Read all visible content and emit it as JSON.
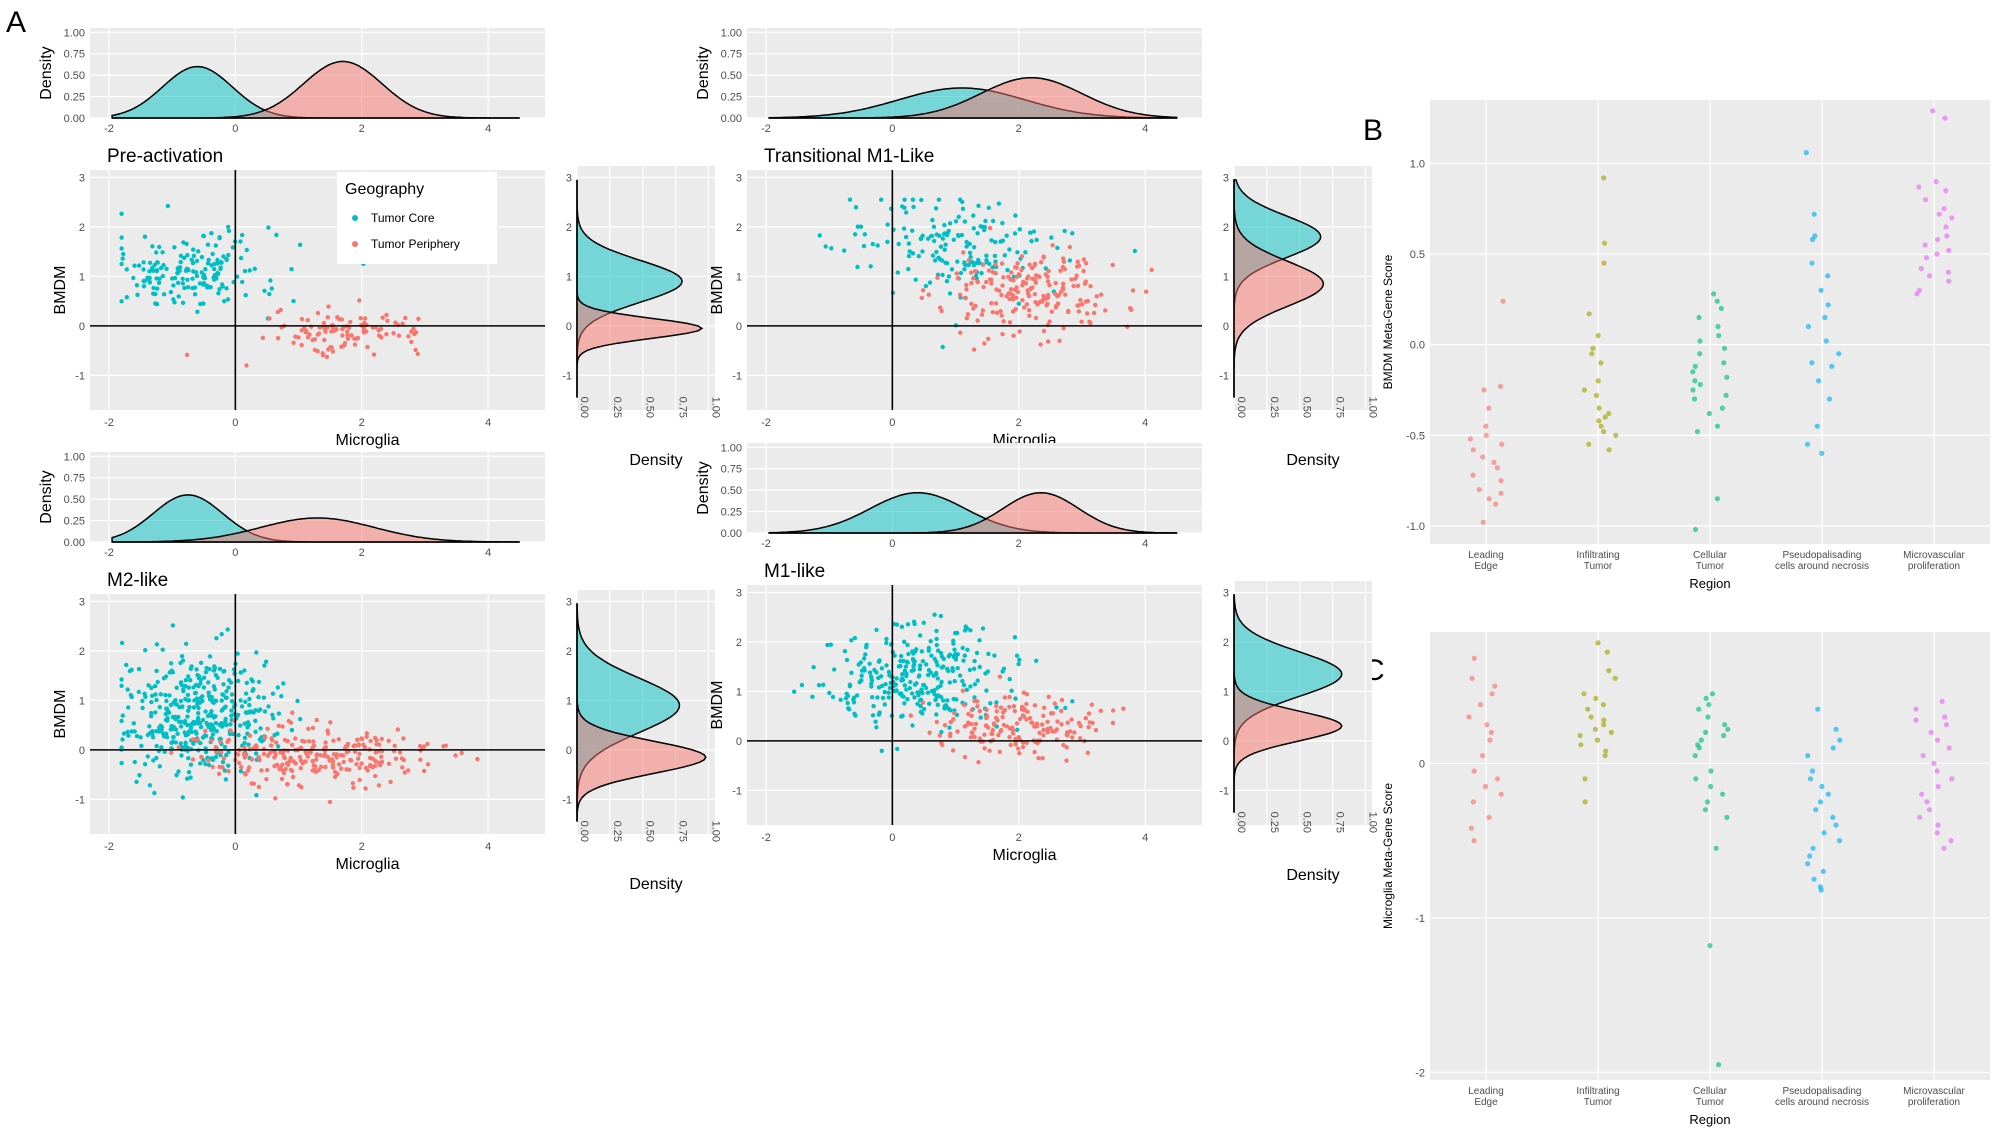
{
  "figure": {
    "panel_letters": [
      "A",
      "B",
      "C"
    ],
    "colors": {
      "core": "#00BFC4",
      "periphery": "#F8766D",
      "panel_bg": "#EBEBEB",
      "grid": "#FFFFFF",
      "region_colors": [
        "#F8766D",
        "#A3A500",
        "#00BF7D",
        "#00B0F6",
        "#E76BF3"
      ]
    }
  },
  "chart_data": [
    {
      "type": "scatter",
      "title": "Pre-activation",
      "xlabel": "Microglia",
      "ylabel": "BMDM",
      "xlim": [
        -2.3,
        4.9
      ],
      "ylim": [
        -1.7,
        3.15
      ],
      "xticks": [
        "-2",
        "0",
        "2",
        "4"
      ],
      "yticks": [
        "-1",
        "0",
        "1",
        "2",
        "3"
      ],
      "density_label": "Density",
      "density_ticks": [
        "0.00",
        "0.25",
        "0.50",
        "0.75",
        "1.00"
      ],
      "legend": {
        "title": "Geography",
        "entries": [
          "Tumor Core",
          "Tumor Periphery"
        ]
      },
      "series": [
        {
          "name": "Tumor Core",
          "x_center": -0.7,
          "x_spread": 0.7,
          "y_center": 1.1,
          "y_spread": 0.4,
          "n": 180,
          "top_density": {
            "mode": -0.6,
            "sd": 0.55,
            "peak": 0.6
          },
          "right_density": {
            "mode": 0.9,
            "sd": 0.42,
            "peak": 0.8
          }
        },
        {
          "name": "Tumor Periphery",
          "x_center": 1.8,
          "x_spread": 0.6,
          "y_center": -0.1,
          "y_spread": 0.2,
          "n": 110,
          "top_density": {
            "mode": 1.7,
            "sd": 0.62,
            "peak": 0.66
          },
          "right_density": {
            "mode": -0.05,
            "sd": 0.2,
            "peak": 0.95
          }
        }
      ]
    },
    {
      "type": "scatter",
      "title": "Transitional M1-Like",
      "xlabel": "Microglia",
      "ylabel": "BMDM",
      "xlim": [
        -2.3,
        4.9
      ],
      "ylim": [
        -1.7,
        3.15
      ],
      "xticks": [
        "-2",
        "0",
        "2",
        "4"
      ],
      "yticks": [
        "-1",
        "0",
        "1",
        "2",
        "3"
      ],
      "density_label": "Density",
      "density_ticks": [
        "0.00",
        "0.25",
        "0.50",
        "0.75",
        "1.00"
      ],
      "series": [
        {
          "name": "Tumor Core",
          "x_center": 1.0,
          "x_spread": 0.9,
          "y_center": 1.6,
          "y_spread": 0.5,
          "n": 170,
          "top_density": {
            "mode": 1.1,
            "sd": 1.0,
            "peak": 0.35
          },
          "right_density": {
            "mode": 1.8,
            "sd": 0.42,
            "peak": 0.66
          }
        },
        {
          "name": "Tumor Periphery",
          "x_center": 2.2,
          "x_spread": 0.7,
          "y_center": 0.7,
          "y_spread": 0.45,
          "n": 200,
          "top_density": {
            "mode": 2.2,
            "sd": 0.8,
            "peak": 0.47
          },
          "right_density": {
            "mode": 0.85,
            "sd": 0.45,
            "peak": 0.68
          }
        }
      ]
    },
    {
      "type": "scatter",
      "title": "M2-like",
      "xlabel": "Microglia",
      "ylabel": "BMDM",
      "xlim": [
        -2.3,
        4.9
      ],
      "ylim": [
        -1.7,
        3.15
      ],
      "xticks": [
        "-2",
        "0",
        "2",
        "4"
      ],
      "yticks": [
        "-1",
        "0",
        "1",
        "2",
        "3"
      ],
      "density_label": "Density",
      "density_ticks": [
        "0.00",
        "0.25",
        "0.50",
        "0.75",
        "1.00"
      ],
      "series": [
        {
          "name": "Tumor Core",
          "x_center": -0.6,
          "x_spread": 0.6,
          "y_center": 0.7,
          "y_spread": 0.6,
          "n": 420,
          "top_density": {
            "mode": -0.75,
            "sd": 0.55,
            "peak": 0.55
          },
          "right_density": {
            "mode": 0.9,
            "sd": 0.55,
            "peak": 0.78
          }
        },
        {
          "name": "Tumor Periphery",
          "x_center": 1.2,
          "x_spread": 0.9,
          "y_center": -0.1,
          "y_spread": 0.3,
          "n": 260,
          "top_density": {
            "mode": 1.3,
            "sd": 0.9,
            "peak": 0.28
          },
          "right_density": {
            "mode": -0.15,
            "sd": 0.32,
            "peak": 0.98
          }
        }
      ]
    },
    {
      "type": "scatter",
      "title": "M1-like",
      "xlabel": "Microglia",
      "ylabel": "BMDM",
      "xlim": [
        -2.3,
        4.9
      ],
      "ylim": [
        -1.7,
        3.15
      ],
      "xticks": [
        "-2",
        "0",
        "2",
        "4"
      ],
      "yticks": [
        "-1",
        "0",
        "1",
        "2",
        "3"
      ],
      "density_label": "Density",
      "density_ticks": [
        "0.00",
        "0.25",
        "0.50",
        "0.75",
        "1.00"
      ],
      "series": [
        {
          "name": "Tumor Core",
          "x_center": 0.5,
          "x_spread": 0.8,
          "y_center": 1.3,
          "y_spread": 0.5,
          "n": 300,
          "top_density": {
            "mode": 0.4,
            "sd": 0.75,
            "peak": 0.47
          },
          "right_density": {
            "mode": 1.35,
            "sd": 0.45,
            "peak": 0.82
          }
        },
        {
          "name": "Tumor Periphery",
          "x_center": 2.0,
          "x_spread": 0.65,
          "y_center": 0.3,
          "y_spread": 0.3,
          "n": 170,
          "top_density": {
            "mode": 2.35,
            "sd": 0.6,
            "peak": 0.47
          },
          "right_density": {
            "mode": 0.3,
            "sd": 0.3,
            "peak": 0.82
          }
        }
      ]
    },
    {
      "type": "scatter",
      "title": "",
      "xlabel": "Region",
      "ylabel": "BMDM Meta-Gene Score",
      "ylim": [
        -1.1,
        1.35
      ],
      "yticks": [
        -1.0,
        -0.5,
        0.0,
        0.5,
        1.0
      ],
      "ytick_labels": [
        "-1.0",
        "-0.5",
        "0.0",
        "0.5",
        "1.0"
      ],
      "categories": [
        "Leading Edge",
        "Infiltrating Tumor",
        "Cellular Tumor",
        "Pseudopalisading cells around necrosis",
        "Microvascular proliferation"
      ],
      "category_labels": [
        [
          "Leading",
          "Edge"
        ],
        [
          "Infiltrating",
          "Tumor"
        ],
        [
          "Cellular",
          "Tumor"
        ],
        [
          "Pseudopalisading",
          "cells around necrosis"
        ],
        [
          "Microvascular",
          "proliferation"
        ]
      ],
      "values": [
        [
          0.24,
          -0.23,
          -0.25,
          -0.35,
          -0.45,
          -0.5,
          -0.52,
          -0.55,
          -0.58,
          -0.62,
          -0.65,
          -0.68,
          -0.72,
          -0.75,
          -0.8,
          -0.82,
          -0.85,
          -0.88,
          -0.98
        ],
        [
          0.92,
          0.56,
          0.45,
          0.17,
          0.05,
          -0.02,
          -0.05,
          -0.1,
          -0.2,
          -0.25,
          -0.28,
          -0.35,
          -0.38,
          -0.4,
          -0.42,
          -0.45,
          -0.48,
          -0.5,
          -0.55,
          -0.58
        ],
        [
          0.28,
          0.24,
          0.2,
          0.15,
          0.1,
          0.05,
          0.02,
          -0.02,
          -0.05,
          -0.1,
          -0.12,
          -0.15,
          -0.18,
          -0.2,
          -0.22,
          -0.25,
          -0.28,
          -0.3,
          -0.35,
          -0.38,
          -0.45,
          -0.48,
          -0.85,
          -1.02
        ],
        [
          1.06,
          0.72,
          0.6,
          0.58,
          0.45,
          0.38,
          0.3,
          0.22,
          0.15,
          0.1,
          0.02,
          -0.05,
          -0.1,
          -0.12,
          -0.2,
          -0.3,
          -0.45,
          -0.55,
          -0.6
        ],
        [
          1.29,
          1.25,
          0.9,
          0.87,
          0.85,
          0.8,
          0.75,
          0.72,
          0.7,
          0.65,
          0.6,
          0.58,
          0.55,
          0.52,
          0.5,
          0.48,
          0.42,
          0.4,
          0.38,
          0.35,
          0.3,
          0.28
        ]
      ]
    },
    {
      "type": "scatter",
      "title": "",
      "xlabel": "Region",
      "ylabel": "Microglia Meta-Gene Score",
      "ylim": [
        -2.05,
        0.85
      ],
      "yticks": [
        -2,
        -1,
        0
      ],
      "ytick_labels": [
        "-2",
        "-1",
        "0"
      ],
      "categories": [
        "Leading Edge",
        "Infiltrating Tumor",
        "Cellular Tumor",
        "Pseudopalisading cells around necrosis",
        "Microvascular proliferation"
      ],
      "category_labels": [
        [
          "Leading",
          "Edge"
        ],
        [
          "Infiltrating",
          "Tumor"
        ],
        [
          "Cellular",
          "Tumor"
        ],
        [
          "Pseudopalisading",
          "cells around necrosis"
        ],
        [
          "Microvascular",
          "proliferation"
        ]
      ],
      "values": [
        [
          0.68,
          0.55,
          0.5,
          0.45,
          0.38,
          0.3,
          0.25,
          0.2,
          0.15,
          0.05,
          -0.05,
          -0.1,
          -0.15,
          -0.2,
          -0.25,
          -0.35,
          -0.42,
          -0.5
        ],
        [
          0.78,
          0.72,
          0.6,
          0.55,
          0.45,
          0.42,
          0.38,
          0.35,
          0.3,
          0.28,
          0.25,
          0.22,
          0.2,
          0.18,
          0.15,
          0.12,
          0.08,
          0.05,
          -0.1,
          -0.25
        ],
        [
          0.45,
          0.42,
          0.38,
          0.35,
          0.3,
          0.25,
          0.22,
          0.2,
          0.18,
          0.15,
          0.12,
          0.1,
          0.05,
          -0.05,
          -0.1,
          -0.15,
          -0.2,
          -0.25,
          -0.3,
          -0.35,
          -0.55,
          -1.18,
          -1.95
        ],
        [
          0.35,
          0.22,
          0.15,
          0.1,
          0.05,
          -0.05,
          -0.1,
          -0.15,
          -0.2,
          -0.25,
          -0.3,
          -0.35,
          -0.4,
          -0.45,
          -0.5,
          -0.55,
          -0.6,
          -0.65,
          -0.7,
          -0.75,
          -0.8,
          -0.82
        ],
        [
          0.4,
          0.35,
          0.3,
          0.28,
          0.25,
          0.2,
          0.15,
          0.1,
          0.05,
          0.0,
          -0.05,
          -0.1,
          -0.15,
          -0.2,
          -0.25,
          -0.3,
          -0.35,
          -0.4,
          -0.45,
          -0.5,
          -0.55
        ]
      ]
    }
  ]
}
